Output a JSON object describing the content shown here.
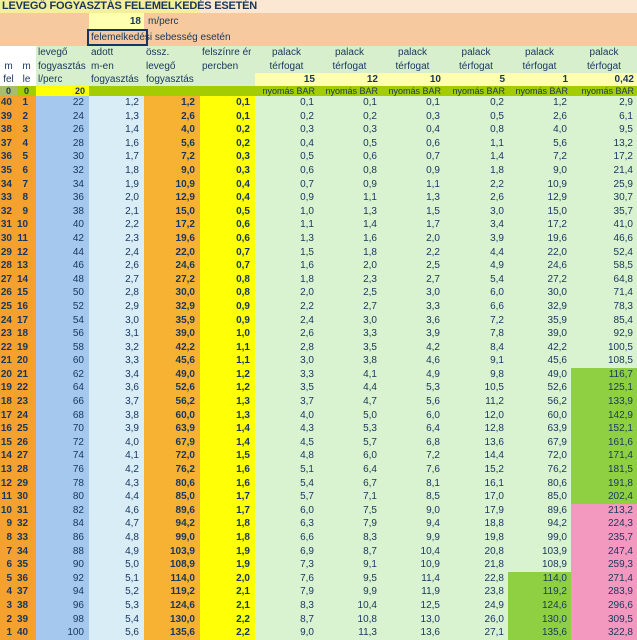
{
  "title": "LEVEGŐ FOGYASZTÁS FELEMELKEDÉS ESETÉN",
  "ascent": {
    "speed": "18",
    "unit": "m/perc",
    "caption": "felemelkedési sebesség esetén",
    "selected_word": "felemelkedés"
  },
  "columns": {
    "m1": {
      "l2": "m",
      "l3": "fel"
    },
    "m2": {
      "l2": "m",
      "l3": "le"
    },
    "air": {
      "l1": "levegő",
      "l2": "fogyasztás",
      "l3": "l/perc"
    },
    "given": {
      "l1": "adott",
      "l2": "m-en",
      "l3": "fogyasztás"
    },
    "total": {
      "l1": "össz.",
      "l2": "levegő",
      "l3": "fogyasztás"
    },
    "surface": {
      "l1": "felszínre ér",
      "l2": "percben"
    }
  },
  "tanks": {
    "label_top": "palack",
    "label_bottom": "térfogat",
    "volumes": [
      "15",
      "12",
      "10",
      "5",
      "1",
      "0,42"
    ],
    "pressure_label": "nyomás BAR"
  },
  "surface_row": {
    "m_fel": "0",
    "m_le": "0",
    "consumption": "20"
  },
  "rows": [
    [
      "40",
      "1",
      "22",
      "1,2",
      "1,2",
      "0,1",
      "0,1",
      "0,1",
      "0,1",
      "0,2",
      "1,2",
      "2,9"
    ],
    [
      "39",
      "2",
      "24",
      "1,3",
      "2,6",
      "0,1",
      "0,2",
      "0,2",
      "0,3",
      "0,5",
      "2,6",
      "6,1"
    ],
    [
      "38",
      "3",
      "26",
      "1,4",
      "4,0",
      "0,2",
      "0,3",
      "0,3",
      "0,4",
      "0,8",
      "4,0",
      "9,5"
    ],
    [
      "37",
      "4",
      "28",
      "1,6",
      "5,6",
      "0,2",
      "0,4",
      "0,5",
      "0,6",
      "1,1",
      "5,6",
      "13,2"
    ],
    [
      "36",
      "5",
      "30",
      "1,7",
      "7,2",
      "0,3",
      "0,5",
      "0,6",
      "0,7",
      "1,4",
      "7,2",
      "17,2"
    ],
    [
      "35",
      "6",
      "32",
      "1,8",
      "9,0",
      "0,3",
      "0,6",
      "0,8",
      "0,9",
      "1,8",
      "9,0",
      "21,4"
    ],
    [
      "34",
      "7",
      "34",
      "1,9",
      "10,9",
      "0,4",
      "0,7",
      "0,9",
      "1,1",
      "2,2",
      "10,9",
      "25,9"
    ],
    [
      "33",
      "8",
      "36",
      "2,0",
      "12,9",
      "0,4",
      "0,9",
      "1,1",
      "1,3",
      "2,6",
      "12,9",
      "30,7"
    ],
    [
      "32",
      "9",
      "38",
      "2,1",
      "15,0",
      "0,5",
      "1,0",
      "1,3",
      "1,5",
      "3,0",
      "15,0",
      "35,7"
    ],
    [
      "31",
      "10",
      "40",
      "2,2",
      "17,2",
      "0,6",
      "1,1",
      "1,4",
      "1,7",
      "3,4",
      "17,2",
      "41,0"
    ],
    [
      "30",
      "11",
      "42",
      "2,3",
      "19,6",
      "0,6",
      "1,3",
      "1,6",
      "2,0",
      "3,9",
      "19,6",
      "46,6"
    ],
    [
      "29",
      "12",
      "44",
      "2,4",
      "22,0",
      "0,7",
      "1,5",
      "1,8",
      "2,2",
      "4,4",
      "22,0",
      "52,4"
    ],
    [
      "28",
      "13",
      "46",
      "2,6",
      "24,6",
      "0,7",
      "1,6",
      "2,0",
      "2,5",
      "4,9",
      "24,6",
      "58,5"
    ],
    [
      "27",
      "14",
      "48",
      "2,7",
      "27,2",
      "0,8",
      "1,8",
      "2,3",
      "2,7",
      "5,4",
      "27,2",
      "64,8"
    ],
    [
      "26",
      "15",
      "50",
      "2,8",
      "30,0",
      "0,8",
      "2,0",
      "2,5",
      "3,0",
      "6,0",
      "30,0",
      "71,4"
    ],
    [
      "25",
      "16",
      "52",
      "2,9",
      "32,9",
      "0,9",
      "2,2",
      "2,7",
      "3,3",
      "6,6",
      "32,9",
      "78,3"
    ],
    [
      "24",
      "17",
      "54",
      "3,0",
      "35,9",
      "0,9",
      "2,4",
      "3,0",
      "3,6",
      "7,2",
      "35,9",
      "85,4"
    ],
    [
      "23",
      "18",
      "56",
      "3,1",
      "39,0",
      "1,0",
      "2,6",
      "3,3",
      "3,9",
      "7,8",
      "39,0",
      "92,9"
    ],
    [
      "22",
      "19",
      "58",
      "3,2",
      "42,2",
      "1,1",
      "2,8",
      "3,5",
      "4,2",
      "8,4",
      "42,2",
      "100,5"
    ],
    [
      "21",
      "20",
      "60",
      "3,3",
      "45,6",
      "1,1",
      "3,0",
      "3,8",
      "4,6",
      "9,1",
      "45,6",
      "108,5"
    ],
    [
      "20",
      "21",
      "62",
      "3,4",
      "49,0",
      "1,2",
      "3,3",
      "4,1",
      "4,9",
      "9,8",
      "49,0",
      "116,7"
    ],
    [
      "19",
      "22",
      "64",
      "3,6",
      "52,6",
      "1,2",
      "3,5",
      "4,4",
      "5,3",
      "10,5",
      "52,6",
      "125,1"
    ],
    [
      "18",
      "23",
      "66",
      "3,7",
      "56,2",
      "1,3",
      "3,7",
      "4,7",
      "5,6",
      "11,2",
      "56,2",
      "133,9"
    ],
    [
      "17",
      "24",
      "68",
      "3,8",
      "60,0",
      "1,3",
      "4,0",
      "5,0",
      "6,0",
      "12,0",
      "60,0",
      "142,9"
    ],
    [
      "16",
      "25",
      "70",
      "3,9",
      "63,9",
      "1,4",
      "4,3",
      "5,3",
      "6,4",
      "12,8",
      "63,9",
      "152,1"
    ],
    [
      "15",
      "26",
      "72",
      "4,0",
      "67,9",
      "1,4",
      "4,5",
      "5,7",
      "6,8",
      "13,6",
      "67,9",
      "161,6"
    ],
    [
      "14",
      "27",
      "74",
      "4,1",
      "72,0",
      "1,5",
      "4,8",
      "6,0",
      "7,2",
      "14,4",
      "72,0",
      "171,4"
    ],
    [
      "13",
      "28",
      "76",
      "4,2",
      "76,2",
      "1,6",
      "5,1",
      "6,4",
      "7,6",
      "15,2",
      "76,2",
      "181,5"
    ],
    [
      "12",
      "29",
      "78",
      "4,3",
      "80,6",
      "1,6",
      "5,4",
      "6,7",
      "8,1",
      "16,1",
      "80,6",
      "191,8"
    ],
    [
      "11",
      "30",
      "80",
      "4,4",
      "85,0",
      "1,7",
      "5,7",
      "7,1",
      "8,5",
      "17,0",
      "85,0",
      "202,4"
    ],
    [
      "10",
      "31",
      "82",
      "4,6",
      "89,6",
      "1,7",
      "6,0",
      "7,5",
      "9,0",
      "17,9",
      "89,6",
      "213,2"
    ],
    [
      "9",
      "32",
      "84",
      "4,7",
      "94,2",
      "1,8",
      "6,3",
      "7,9",
      "9,4",
      "18,8",
      "94,2",
      "224,3"
    ],
    [
      "8",
      "33",
      "86",
      "4,8",
      "99,0",
      "1,8",
      "6,6",
      "8,3",
      "9,9",
      "19,8",
      "99,0",
      "235,7"
    ],
    [
      "7",
      "34",
      "88",
      "4,9",
      "103,9",
      "1,9",
      "6,9",
      "8,7",
      "10,4",
      "20,8",
      "103,9",
      "247,4"
    ],
    [
      "6",
      "35",
      "90",
      "5,0",
      "108,9",
      "1,9",
      "7,3",
      "9,1",
      "10,9",
      "21,8",
      "108,9",
      "259,3"
    ],
    [
      "5",
      "36",
      "92",
      "5,1",
      "114,0",
      "2,0",
      "7,6",
      "9,5",
      "11,4",
      "22,8",
      "114,0",
      "271,4"
    ],
    [
      "4",
      "37",
      "94",
      "5,2",
      "119,2",
      "2,1",
      "7,9",
      "9,9",
      "11,9",
      "23,8",
      "119,2",
      "283,9"
    ],
    [
      "3",
      "38",
      "96",
      "5,3",
      "124,6",
      "2,1",
      "8,3",
      "10,4",
      "12,5",
      "24,9",
      "124,6",
      "296,6"
    ],
    [
      "2",
      "39",
      "98",
      "5,4",
      "130,0",
      "2,2",
      "8,7",
      "10,8",
      "13,0",
      "26,0",
      "130,0",
      "309,5"
    ],
    [
      "1",
      "40",
      "100",
      "5,6",
      "135,6",
      "2,2",
      "9,0",
      "11,3",
      "13,6",
      "27,1",
      "135,6",
      "322,8"
    ]
  ],
  "highlights": {
    "col_1bar_green_from_le": 36,
    "col_042_green_from_le": 21,
    "col_042_green_to_le": 30,
    "col_042_pink_from_le": 31
  },
  "colors": {
    "title_bg": "#f4ef9a",
    "top_right_bg": "#fbe7d2",
    "peach_bg": "#f7c99e",
    "header_green_bg": "#d8efcd",
    "volume_row_bg": "#ffffb0",
    "olive_band_bg": "#a4cc02",
    "olive_corner_bg": "#a9bd6e",
    "orange_col": "#f5a12f",
    "blue_col": "#a5c8ee",
    "pale_blue_col": "#d9edf7",
    "amber_col": "#f8b233",
    "yellow_col": "#ffff05",
    "pale_green_col": "#d9f2cf",
    "green_highlight": "#8fd043",
    "pink_highlight": "#f399c0",
    "text": "#17365d"
  }
}
